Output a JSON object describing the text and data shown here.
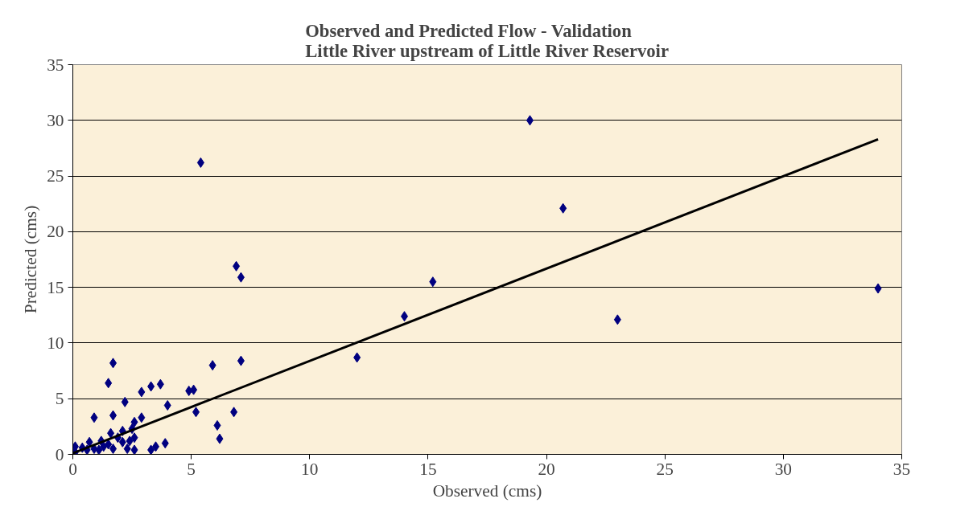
{
  "chart_data": {
    "type": "scatter",
    "title": "Observed and Predicted Flow - Validation\nLittle River upstream of Little River Reservoir",
    "xlabel": "Observed (cms)",
    "ylabel": "Predicted (cms)",
    "xlim": [
      0,
      35
    ],
    "ylim": [
      0,
      35
    ],
    "xticks": [
      0,
      5,
      10,
      15,
      20,
      25,
      30,
      35
    ],
    "yticks": [
      0,
      5,
      10,
      15,
      20,
      25,
      30,
      35
    ],
    "grid": "y",
    "marker": "diamond",
    "series": [
      {
        "color": "#000080",
        "x": [
          34.0,
          23.0,
          19.3,
          20.7,
          15.2,
          14.0,
          12.0,
          5.4,
          6.9,
          7.1,
          1.7,
          1.5,
          7.1,
          5.9,
          2.9,
          3.3,
          3.7,
          4.9,
          5.1,
          2.2,
          4.0,
          5.2,
          6.8,
          0.9,
          1.7,
          6.1,
          6.2,
          2.9,
          2.6,
          1.6,
          2.1,
          2.5,
          2.6,
          0.7,
          1.2,
          1.9,
          3.9,
          3.5,
          3.3,
          2.6,
          2.3,
          1.6,
          1.3,
          0.9,
          0.4,
          0.1,
          0.1,
          1.5,
          1.7,
          1.1,
          0.6,
          2.1,
          2.4
        ],
        "values": [
          14.9,
          12.1,
          30.0,
          22.1,
          15.5,
          12.4,
          8.7,
          26.2,
          16.9,
          15.9,
          8.2,
          6.4,
          8.4,
          8.0,
          5.6,
          6.1,
          6.3,
          5.7,
          5.8,
          4.7,
          4.4,
          3.8,
          3.8,
          3.3,
          3.5,
          2.6,
          1.4,
          3.3,
          2.9,
          1.9,
          2.1,
          2.3,
          1.5,
          1.1,
          1.2,
          1.5,
          1.0,
          0.7,
          0.4,
          0.4,
          0.5,
          null,
          0.7,
          0.5,
          0.6,
          0.7,
          0.2,
          0.9,
          0.5,
          0.4,
          0.4,
          1.1,
          1.2
        ]
      },
      {
        "type": "line",
        "color": "#000000",
        "x": [
          0,
          34.0
        ],
        "values": [
          0.1,
          28.3
        ],
        "marker": "none"
      }
    ]
  }
}
